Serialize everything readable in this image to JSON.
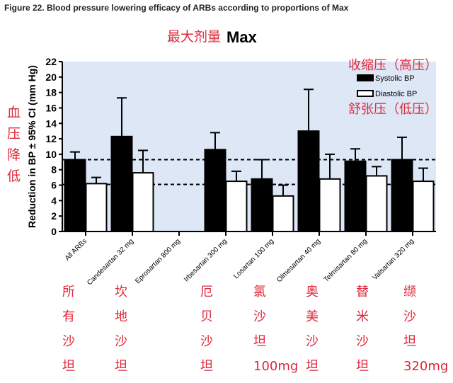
{
  "figure_title": "Figure 22.   Blood pressure lowering efficacy of ARBs according to proportions of Max",
  "annotations": {
    "top": "最大剂量",
    "top_max": "Max",
    "systolic_cn": "收缩压（高压）",
    "diastolic_cn": "舒张压（低压）",
    "ylabel_cn": [
      "血",
      "压",
      "降",
      "低"
    ],
    "drug_cn": [
      {
        "chars": [
          "所",
          "有",
          "沙",
          "坦"
        ],
        "dose": ""
      },
      {
        "chars": [
          "坎",
          "地",
          "沙",
          "坦"
        ],
        "dose": "32mg"
      },
      {
        "chars": [
          "厄",
          "贝",
          "沙",
          "坦"
        ],
        "dose": "300mg"
      },
      {
        "chars": [
          "氯",
          "沙",
          "坦"
        ],
        "dose": "100mg"
      },
      {
        "chars": [
          "奥",
          "美",
          "沙",
          "坦"
        ],
        "dose": "40mg"
      },
      {
        "chars": [
          "替",
          "米",
          "沙",
          "坦"
        ],
        "dose": "80mg"
      },
      {
        "chars": [
          "缬",
          "沙",
          "坦"
        ],
        "dose": "320mg"
      }
    ]
  },
  "chart_data": {
    "type": "bar",
    "title": "",
    "xlabel": "",
    "ylabel": "Reduction in BP ± 95% CI (mm Hg)",
    "ylim": [
      0,
      22
    ],
    "yticks": [
      0,
      2,
      4,
      6,
      8,
      10,
      12,
      14,
      16,
      18,
      20,
      22
    ],
    "categories": [
      "All ARBs",
      "Candesartan 32 mg",
      "Eprosartan 800 mg",
      "Irbesartan 300 mg",
      "Losartan 100 mg",
      "Olmesartan 40 mg",
      "Telmisartan 80 mg",
      "Valsartan 320 mg"
    ],
    "series": [
      {
        "name": "Systolic BP",
        "color": "#000000",
        "values": [
          9.3,
          12.3,
          null,
          10.6,
          6.8,
          13.0,
          9.1,
          9.3
        ],
        "upper_ci": [
          10.3,
          17.3,
          null,
          12.8,
          9.3,
          18.4,
          10.7,
          12.2
        ]
      },
      {
        "name": "Diastolic BP",
        "color": "#ffffff",
        "values": [
          6.2,
          7.6,
          null,
          6.5,
          4.6,
          6.8,
          7.2,
          6.5
        ],
        "upper_ci": [
          7.0,
          10.5,
          null,
          7.8,
          6.0,
          10.0,
          8.4,
          8.2
        ]
      }
    ],
    "reference_lines": [
      9.3,
      6.1
    ],
    "background": "#dde7f6",
    "legend_position": "top-right",
    "grid": false
  }
}
